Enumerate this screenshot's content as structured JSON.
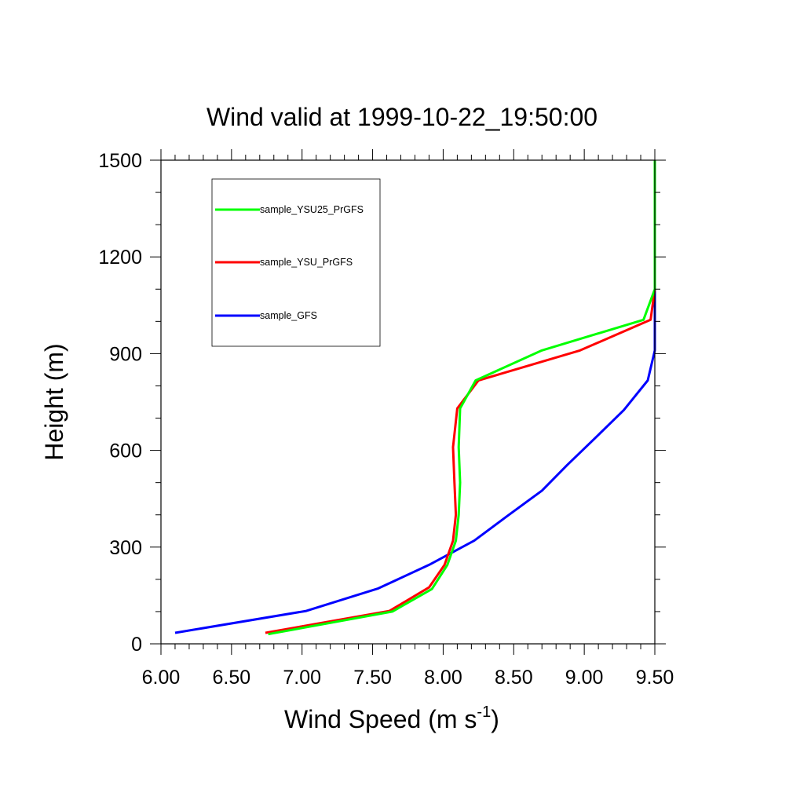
{
  "chart_data": {
    "type": "line",
    "title": "Wind valid at 1999-10-22_19:50:00",
    "xlabel": "Wind Speed (m s",
    "xlabel_sup": "-1",
    "xlabel_close": ")",
    "ylabel": "Height (m)",
    "xlim": [
      6.0,
      9.5
    ],
    "ylim": [
      0,
      1500
    ],
    "x_ticks": [
      "6.00",
      "6.50",
      "7.00",
      "7.50",
      "8.00",
      "8.50",
      "9.00",
      "9.50"
    ],
    "y_ticks": [
      "0",
      "300",
      "600",
      "900",
      "1200",
      "1500"
    ],
    "grid": false,
    "legend_position": "top-left",
    "series": [
      {
        "name": "sample_YSU25_PrGFS",
        "color": "#00ff00",
        "points": [
          [
            6.76,
            30
          ],
          [
            7.64,
            100
          ],
          [
            7.92,
            170
          ],
          [
            8.03,
            245
          ],
          [
            8.09,
            320
          ],
          [
            8.11,
            400
          ],
          [
            8.12,
            500
          ],
          [
            8.11,
            610
          ],
          [
            8.12,
            730
          ],
          [
            8.23,
            817
          ],
          [
            8.7,
            910
          ],
          [
            9.42,
            1005
          ],
          [
            9.5,
            1100
          ],
          [
            9.5,
            1500
          ]
        ]
      },
      {
        "name": "sample_YSU_PrGFS",
        "color": "#ff0000",
        "points": [
          [
            6.74,
            34
          ],
          [
            7.62,
            102
          ],
          [
            7.9,
            175
          ],
          [
            8.01,
            245
          ],
          [
            8.07,
            320
          ],
          [
            8.09,
            400
          ],
          [
            8.08,
            500
          ],
          [
            8.07,
            610
          ],
          [
            8.1,
            730
          ],
          [
            8.25,
            817
          ],
          [
            8.97,
            910
          ],
          [
            9.47,
            1005
          ],
          [
            9.5,
            1100
          ],
          [
            9.5,
            1500
          ]
        ]
      },
      {
        "name": "sample_GFS",
        "color": "#0000ff",
        "points": [
          [
            6.1,
            34
          ],
          [
            7.03,
            102
          ],
          [
            7.54,
            172
          ],
          [
            7.9,
            245
          ],
          [
            8.22,
            320
          ],
          [
            8.45,
            395
          ],
          [
            8.7,
            475
          ],
          [
            8.88,
            555
          ],
          [
            9.07,
            635
          ],
          [
            9.28,
            725
          ],
          [
            9.45,
            817
          ],
          [
            9.5,
            910
          ],
          [
            9.5,
            1005
          ],
          [
            9.5,
            1100
          ],
          [
            9.5,
            1500
          ]
        ]
      }
    ]
  }
}
